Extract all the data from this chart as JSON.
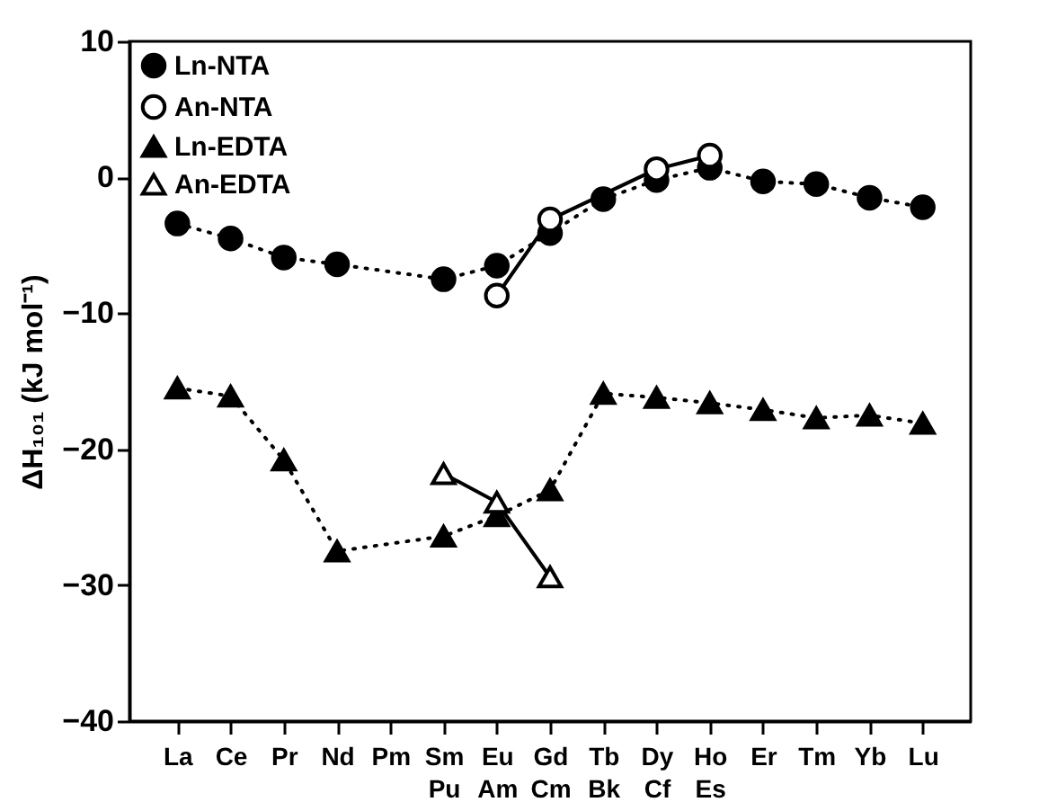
{
  "chart_data": {
    "type": "line",
    "ylabel": "ΔH₁₀₁ (kJ mol⁻¹)",
    "categories": [
      "La",
      "Ce",
      "Pr",
      "Nd",
      "Pm",
      "Sm\nPu",
      "Eu\nAm",
      "Gd\nCm",
      "Tb\nBk",
      "Dy\nCf",
      "Ho\nEs",
      "Er",
      "Tm",
      "Yb",
      "Lu"
    ],
    "series": [
      {
        "name": "Ln-NTA",
        "color": "#000000",
        "marker": "circle",
        "line_style": "dotted",
        "values": [
          -3.4,
          -4.5,
          -5.9,
          -6.4,
          null,
          -7.5,
          -6.5,
          -4.1,
          -1.6,
          -0.2,
          0.7,
          -0.3,
          -0.5,
          -1.5,
          -2.2
        ]
      },
      {
        "name": "An-NTA",
        "color": "#000000",
        "marker": "circle",
        "line_style": "solid",
        "values": [
          null,
          null,
          null,
          null,
          null,
          null,
          -8.7,
          -3.1,
          null,
          0.6,
          1.6,
          null,
          null,
          null,
          null
        ]
      },
      {
        "name": "Ln-EDTA",
        "color": "#000000",
        "marker": "triangle",
        "line_style": "dotted",
        "values": [
          -15.5,
          -16.1,
          -20.8,
          -27.5,
          null,
          -26.4,
          -24.9,
          -23.0,
          -15.9,
          -16.2,
          -16.6,
          -17.1,
          -17.7,
          -17.5,
          -18.1
        ]
      },
      {
        "name": "An-EDTA",
        "color": "#000000",
        "marker": "triangle",
        "line_style": "solid",
        "values": [
          null,
          null,
          null,
          null,
          null,
          -21.8,
          -23.9,
          -29.4,
          null,
          null,
          null,
          null,
          null,
          null,
          null
        ]
      }
    ],
    "ylim": [
      -40,
      10
    ],
    "yticks": [
      -40,
      -30,
      -20,
      -10,
      0,
      10
    ],
    "grid": false,
    "legend": "top left"
  }
}
